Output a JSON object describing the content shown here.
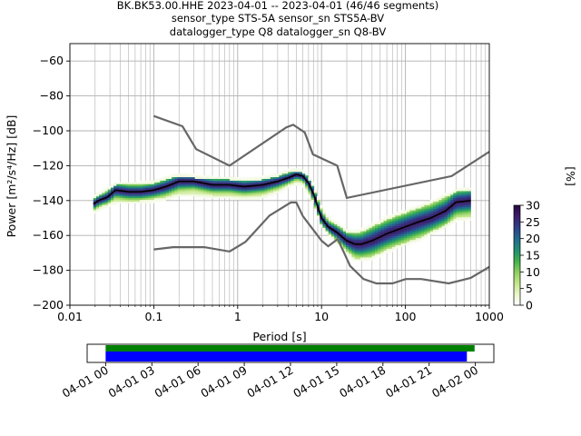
{
  "title_lines": [
    "BK.BK53.00.HHE   2023-04-01 -- 2023-04-01  (46/46 segments)",
    "sensor_type STS-5A sensor_sn STS5A-BV",
    "datalogger_type Q8 datalogger_sn Q8-BV"
  ],
  "colors": {
    "median": "#000000",
    "noise_model": "#666666",
    "grid": "#b0b0b0",
    "coverage_data": "#008000",
    "coverage_gaps_bar": "#0000ff"
  },
  "chart_data": [
    {
      "type": "heatmap",
      "subtype": "probabilistic-power-spectral-density",
      "xlabel": "Period [s]",
      "ylabel": "Power [m²/s⁴/Hz] [dB]",
      "xscale": "log",
      "xlim": [
        0.01,
        1000
      ],
      "ylim": [
        -200,
        -50
      ],
      "x_ticks": [
        {
          "v": 0.01,
          "label": "0.01"
        },
        {
          "v": 0.1,
          "label": "0.1"
        },
        {
          "v": 1,
          "label": "1"
        },
        {
          "v": 10,
          "label": "10"
        },
        {
          "v": 100,
          "label": "100"
        },
        {
          "v": 1000,
          "label": "1000"
        }
      ],
      "y_ticks": [
        {
          "v": -60,
          "label": "−60"
        },
        {
          "v": -80,
          "label": "−80"
        },
        {
          "v": -100,
          "label": "−100"
        },
        {
          "v": -120,
          "label": "−120"
        },
        {
          "v": -140,
          "label": "−140"
        },
        {
          "v": -160,
          "label": "−160"
        },
        {
          "v": -180,
          "label": "−180"
        },
        {
          "v": -200,
          "label": "−200"
        }
      ],
      "grid": true,
      "colorbar": {
        "label": "[%]",
        "range": [
          0,
          30
        ],
        "ticks": [
          {
            "v": 0,
            "label": "0"
          },
          {
            "v": 5,
            "label": "5"
          },
          {
            "v": 10,
            "label": "10"
          },
          {
            "v": 15,
            "label": "15"
          },
          {
            "v": 20,
            "label": "20"
          },
          {
            "v": 25,
            "label": "25"
          },
          {
            "v": 30,
            "label": "30"
          }
        ],
        "colors": [
          "#ffffff",
          "#e8f5c8",
          "#c3e689",
          "#8ccf5e",
          "#41b14d",
          "#1f8f73",
          "#226a8d",
          "#2e3f8a",
          "#3c1e6b",
          "#28073f"
        ]
      },
      "median": {
        "x": [
          0.019,
          0.022,
          0.028,
          0.035,
          0.05,
          0.07,
          0.1,
          0.14,
          0.2,
          0.3,
          0.5,
          0.8,
          1.2,
          2,
          3,
          4,
          5,
          6,
          7,
          8,
          10,
          12,
          15,
          20,
          25,
          30,
          40,
          60,
          100,
          150,
          200,
          300,
          400,
          600
        ],
        "y": [
          -142,
          -140,
          -138,
          -134,
          -135,
          -135,
          -134,
          -132,
          -129,
          -129,
          -131,
          -131,
          -132,
          -131,
          -129,
          -127,
          -125,
          -126,
          -130,
          -136,
          -150,
          -155,
          -158,
          -163,
          -165,
          -165,
          -163,
          -159,
          -155,
          -152,
          -150,
          -146,
          -141,
          -140
        ]
      },
      "spread": [
        {
          "x": 0.019,
          "lo": -146,
          "hi": -139
        },
        {
          "x": 0.025,
          "lo": -143,
          "hi": -136
        },
        {
          "x": 0.035,
          "lo": -140,
          "hi": -131
        },
        {
          "x": 0.05,
          "lo": -140,
          "hi": -131
        },
        {
          "x": 0.07,
          "lo": -140,
          "hi": -131
        },
        {
          "x": 0.1,
          "lo": -139,
          "hi": -130
        },
        {
          "x": 0.14,
          "lo": -138,
          "hi": -128
        },
        {
          "x": 0.2,
          "lo": -136,
          "hi": -126
        },
        {
          "x": 0.3,
          "lo": -136,
          "hi": -127
        },
        {
          "x": 0.5,
          "lo": -137,
          "hi": -128
        },
        {
          "x": 0.8,
          "lo": -137,
          "hi": -128
        },
        {
          "x": 1.2,
          "lo": -138,
          "hi": -129
        },
        {
          "x": 2,
          "lo": -137,
          "hi": -128
        },
        {
          "x": 3,
          "lo": -134,
          "hi": -126
        },
        {
          "x": 4,
          "lo": -131,
          "hi": -124
        },
        {
          "x": 5,
          "lo": -129,
          "hi": -123
        },
        {
          "x": 6,
          "lo": -130,
          "hi": -124
        },
        {
          "x": 7,
          "lo": -135,
          "hi": -127
        },
        {
          "x": 8,
          "lo": -141,
          "hi": -132
        },
        {
          "x": 10,
          "lo": -154,
          "hi": -145
        },
        {
          "x": 12,
          "lo": -158,
          "hi": -151
        },
        {
          "x": 15,
          "lo": -163,
          "hi": -154
        },
        {
          "x": 20,
          "lo": -169,
          "hi": -158
        },
        {
          "x": 25,
          "lo": -173,
          "hi": -159
        },
        {
          "x": 30,
          "lo": -173,
          "hi": -158
        },
        {
          "x": 40,
          "lo": -172,
          "hi": -155
        },
        {
          "x": 60,
          "lo": -168,
          "hi": -151
        },
        {
          "x": 100,
          "lo": -164,
          "hi": -147
        },
        {
          "x": 150,
          "lo": -161,
          "hi": -144
        },
        {
          "x": 200,
          "lo": -158,
          "hi": -142
        },
        {
          "x": 300,
          "lo": -154,
          "hi": -138
        },
        {
          "x": 400,
          "lo": -150,
          "hi": -135
        },
        {
          "x": 600,
          "lo": -149,
          "hi": -134
        }
      ],
      "noise_models": [
        {
          "x": [
            0.1,
            0.22,
            0.32,
            0.8,
            3.8,
            4.6,
            6.3,
            7.9,
            15.4,
            20,
            354.8,
            1000
          ],
          "y": [
            -91.5,
            -97.4,
            -110.5,
            -120,
            -98,
            -96.5,
            -101,
            -113.5,
            -120,
            -138.5,
            -126,
            -112
          ]
        },
        {
          "x": [
            0.1,
            0.17,
            0.4,
            0.8,
            1.24,
            2.4,
            4.3,
            5,
            6,
            10,
            12,
            15.6,
            21.9,
            31.6,
            45,
            70,
            101,
            154,
            328,
            600,
            1000
          ],
          "y": [
            -168,
            -166.7,
            -166.7,
            -169.2,
            -163.7,
            -148.6,
            -141.1,
            -141.1,
            -149,
            -163,
            -166.2,
            -162.1,
            -177.5,
            -185,
            -187.5,
            -187.5,
            -185,
            -185,
            -187.5,
            -184.4,
            -178
          ]
        }
      ]
    },
    {
      "type": "bar",
      "subtype": "data-coverage-timeline",
      "x_ticks": [
        "04-01 00",
        "04-01 03",
        "04-01 06",
        "04-01 09",
        "04-01 12",
        "04-01 15",
        "04-01 18",
        "04-01 21",
        "04-02 00"
      ],
      "x_tick_hours": [
        0,
        3,
        6,
        9,
        12,
        15,
        18,
        21,
        24
      ],
      "xlim_hours": [
        -1.2,
        25.2
      ],
      "series": [
        {
          "start_hour": 0,
          "end_hour": 23.95
        },
        {
          "start_hour": 0,
          "end_hour": 23.45
        }
      ]
    }
  ]
}
